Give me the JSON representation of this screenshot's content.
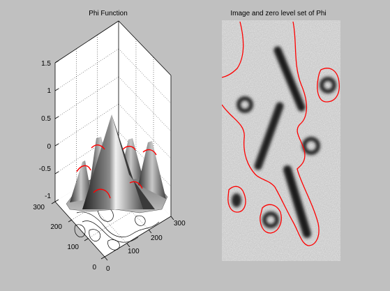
{
  "chart_data": [
    {
      "type": "surface",
      "title": "Phi Function",
      "zlim": [
        -1,
        1.5
      ],
      "z_ticks": [
        "1.5",
        "1",
        "0.5",
        "0",
        "-0.5",
        "-1"
      ],
      "xlim": [
        0,
        300
      ],
      "x_ticks": [
        "0",
        "100",
        "200",
        "300"
      ],
      "ylim": [
        0,
        300
      ],
      "y_ticks": [
        "0",
        "100",
        "200",
        "300"
      ],
      "grid": true,
      "colormap": "gray",
      "zero_level_color": "#ff0000",
      "contour_color": "#000000"
    },
    {
      "type": "image",
      "title": "Image and zero level set of Phi",
      "colormap": "gray",
      "contour_color": "#ff0000"
    }
  ]
}
